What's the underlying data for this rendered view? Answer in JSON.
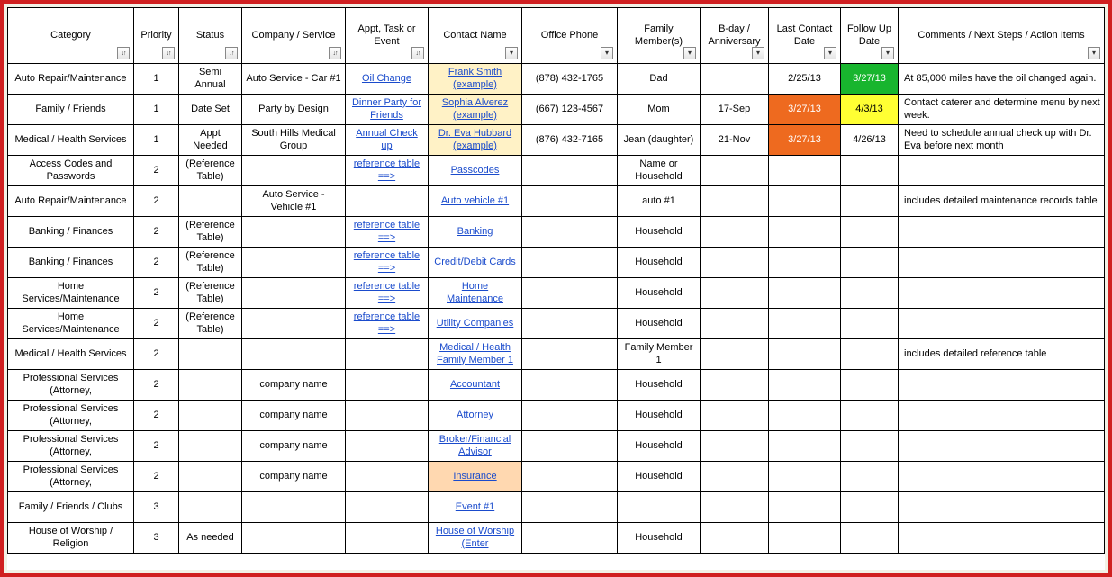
{
  "colors": {
    "frame_border": "#d02020",
    "link": "#1a4bcc",
    "hl_yellow_light": "#fff2c6",
    "hl_yellow": "#ffff33",
    "hl_green": "#18b52e",
    "hl_orange": "#ee6a1f",
    "hl_peach": "#ffd8b0"
  },
  "columns": [
    {
      "key": "category",
      "label": "Category",
      "filter": "sort"
    },
    {
      "key": "priority",
      "label": "Priority",
      "filter": "sort"
    },
    {
      "key": "status",
      "label": "Status",
      "filter": "sort"
    },
    {
      "key": "company",
      "label": "Company / Service",
      "filter": "sort"
    },
    {
      "key": "appt",
      "label": "Appt, Task or Event",
      "filter": "sort"
    },
    {
      "key": "contact",
      "label": "Contact Name",
      "filter": "drop"
    },
    {
      "key": "phone",
      "label": "Office Phone",
      "filter": "drop"
    },
    {
      "key": "family",
      "label": "Family Member(s)",
      "filter": "drop"
    },
    {
      "key": "bday",
      "label": "B-day / Anniversary",
      "filter": "drop"
    },
    {
      "key": "lastdate",
      "label": "Last Contact Date",
      "filter": "drop"
    },
    {
      "key": "followup",
      "label": "Follow Up Date",
      "filter": "drop"
    },
    {
      "key": "comments",
      "label": "Comments / Next Steps / Action Items",
      "filter": "drop"
    }
  ],
  "rows": [
    {
      "category": "Auto Repair/Maintenance",
      "priority": "1",
      "status": "Semi Annual",
      "company": "Auto Service - Car #1",
      "appt": "Oil Change",
      "appt_link": true,
      "contact": "Frank Smith (example)",
      "contact_link": true,
      "contact_hl": "yellow-light",
      "phone": "(878) 432-1765",
      "family": "Dad",
      "bday": "",
      "lastdate": "2/25/13",
      "followup": "3/27/13",
      "followup_hl": "green",
      "comments": "At 85,000 miles have the oil changed again."
    },
    {
      "category": "Family / Friends",
      "priority": "1",
      "status": "Date Set",
      "company": "Party by Design",
      "appt": "Dinner Party for Friends",
      "appt_link": true,
      "contact": "Sophia Alverez (example)",
      "contact_link": true,
      "contact_hl": "yellow-light",
      "phone": "(667) 123-4567",
      "family": "Mom",
      "bday": "17-Sep",
      "lastdate": "3/27/13",
      "lastdate_hl": "orange",
      "followup": "4/3/13",
      "followup_hl": "yellow",
      "comments": "Contact caterer and determine menu by next week."
    },
    {
      "category": "Medical / Health Services",
      "priority": "1",
      "status": "Appt Needed",
      "company": "South Hills Medical Group",
      "appt": "Annual Check up",
      "appt_link": true,
      "contact": "Dr. Eva Hubbard (example)",
      "contact_link": true,
      "contact_hl": "yellow-light",
      "phone": "(876) 432-7165",
      "family": "Jean (daughter)",
      "bday": "21-Nov",
      "lastdate": "3/27/13",
      "lastdate_hl": "orange",
      "followup": "4/26/13",
      "comments": "Need to schedule annual check up with Dr. Eva before next month"
    },
    {
      "category": "Access Codes and Passwords",
      "priority": "2",
      "status": "(Reference Table)",
      "company": "",
      "appt": "reference table ==>",
      "appt_link": true,
      "contact": "Passcodes",
      "contact_link": true,
      "phone": "",
      "family": "Name or Household",
      "bday": "",
      "lastdate": "",
      "followup": "",
      "comments": ""
    },
    {
      "category": "Auto Repair/Maintenance",
      "priority": "2",
      "status": "",
      "company": "Auto Service - Vehicle #1",
      "appt": "",
      "contact": "Auto vehicle #1",
      "contact_link": true,
      "phone": "",
      "family": "auto #1",
      "bday": "",
      "lastdate": "",
      "followup": "",
      "comments": "includes detailed maintenance records table"
    },
    {
      "category": "Banking / Finances",
      "priority": "2",
      "status": "(Reference Table)",
      "company": "",
      "appt": "reference table ==>",
      "appt_link": true,
      "contact": "Banking",
      "contact_link": true,
      "phone": "",
      "family": "Household",
      "bday": "",
      "lastdate": "",
      "followup": "",
      "comments": ""
    },
    {
      "category": "Banking / Finances",
      "priority": "2",
      "status": "(Reference Table)",
      "company": "",
      "appt": "reference table ==>",
      "appt_link": true,
      "contact": "Credit/Debit Cards",
      "contact_link": true,
      "phone": "",
      "family": "Household",
      "bday": "",
      "lastdate": "",
      "followup": "",
      "comments": ""
    },
    {
      "category": "Home Services/Maintenance",
      "priority": "2",
      "status": "(Reference Table)",
      "company": "",
      "appt": "reference table ==>",
      "appt_link": true,
      "contact": "Home Maintenance",
      "contact_link": true,
      "phone": "",
      "family": "Household",
      "bday": "",
      "lastdate": "",
      "followup": "",
      "comments": ""
    },
    {
      "category": "Home Services/Maintenance",
      "priority": "2",
      "status": "(Reference Table)",
      "company": "",
      "appt": "reference table ==>",
      "appt_link": true,
      "contact": "Utility Companies",
      "contact_link": true,
      "phone": "",
      "family": "Household",
      "bday": "",
      "lastdate": "",
      "followup": "",
      "comments": ""
    },
    {
      "category": "Medical / Health Services",
      "priority": "2",
      "status": "",
      "company": "",
      "appt": "",
      "contact": "Medical / Health Family Member 1",
      "contact_link": true,
      "phone": "",
      "family": "Family Member 1",
      "bday": "",
      "lastdate": "",
      "followup": "",
      "comments": "includes detailed reference table"
    },
    {
      "category": "Professional Services (Attorney,",
      "priority": "2",
      "status": "",
      "company": "company name",
      "appt": "",
      "contact": "Accountant ",
      "contact_link": true,
      "phone": "",
      "family": "Household",
      "bday": "",
      "lastdate": "",
      "followup": "",
      "comments": ""
    },
    {
      "category": "Professional Services (Attorney,",
      "priority": "2",
      "status": "",
      "company": "company name",
      "appt": "",
      "contact": "Attorney ",
      "contact_link": true,
      "phone": "",
      "family": "Household",
      "bday": "",
      "lastdate": "",
      "followup": "",
      "comments": ""
    },
    {
      "category": "Professional Services (Attorney,",
      "priority": "2",
      "status": "",
      "company": "company name",
      "appt": "",
      "contact": "Broker/Financial Advisor ",
      "contact_link": true,
      "phone": "",
      "family": "Household",
      "bday": "",
      "lastdate": "",
      "followup": "",
      "comments": ""
    },
    {
      "category": "Professional Services (Attorney,",
      "priority": "2",
      "status": "",
      "company": "company name",
      "appt": "",
      "contact": "Insurance ",
      "contact_link": true,
      "contact_hl": "peach",
      "phone": "",
      "family": "Household",
      "bday": "",
      "lastdate": "",
      "followup": "",
      "comments": ""
    },
    {
      "category": "Family / Friends / Clubs",
      "priority": "3",
      "status": "",
      "company": "",
      "appt": "",
      "contact": "Event #1",
      "contact_link": true,
      "phone": "",
      "family": "",
      "bday": "",
      "lastdate": "",
      "followup": "",
      "comments": ""
    },
    {
      "category": "House of Worship / Religion",
      "priority": "3",
      "status": "As needed",
      "company": "",
      "appt": "",
      "contact": "House of Worship (Enter",
      "contact_link": true,
      "phone": "",
      "family": "Household",
      "bday": "",
      "lastdate": "",
      "followup": "",
      "comments": ""
    }
  ]
}
